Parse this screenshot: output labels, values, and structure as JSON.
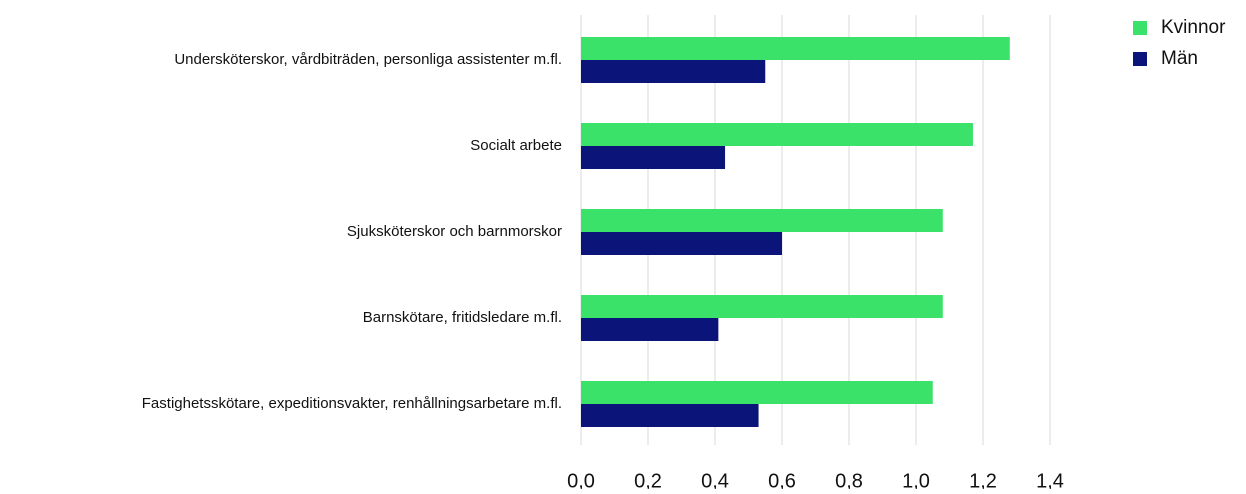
{
  "chart_data": {
    "type": "hbar",
    "categories": [
      "Undersköterskor, vårdbiträden, personliga assistenter m.fl.",
      "Socialt arbete",
      "Sjuksköterskor och barnmorskor",
      "Barnskötare, fritidsledare m.fl.",
      "Fastighetsskötare, expeditionsvakter, renhållningsarbetare m.fl."
    ],
    "series": [
      {
        "name": "Kvinnor",
        "color": "#3ae26a",
        "values": [
          1.28,
          1.17,
          1.08,
          1.08,
          1.05
        ]
      },
      {
        "name": "Män",
        "color": "#0b1478",
        "values": [
          0.55,
          0.43,
          0.6,
          0.41,
          0.53
        ]
      }
    ],
    "xlim": [
      0,
      1.4
    ],
    "xticks": [
      {
        "value": 0,
        "label": "0,0"
      },
      {
        "value": 0.2,
        "label": "0,2"
      },
      {
        "value": 0.4,
        "label": "0,4"
      },
      {
        "value": 0.6,
        "label": "0,6"
      },
      {
        "value": 0.8,
        "label": "0,8"
      },
      {
        "value": 1.0,
        "label": "1,0"
      },
      {
        "value": 1.2,
        "label": "1,2"
      },
      {
        "value": 1.4,
        "label": "1,4"
      }
    ],
    "grid": true,
    "legend": "top-right"
  }
}
